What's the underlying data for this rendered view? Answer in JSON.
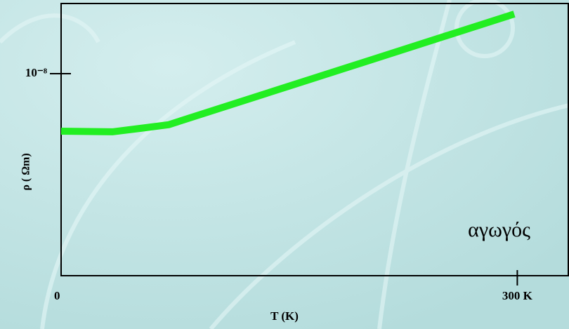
{
  "chart_data": {
    "type": "line",
    "ylabel": "ρ ( Ωm)",
    "xlabel": "T (K)",
    "annotation": "αγωγός",
    "xlim": [
      0,
      334
    ],
    "ylim": [
      0,
      1.347e-08
    ],
    "xticks": [
      0,
      {
        "value": 300,
        "label": "300 K"
      }
    ],
    "yticks": [
      {
        "value": 1e-08,
        "label": "10⁻⁸"
      }
    ],
    "series": [
      {
        "color": "#22ee22",
        "x": [
          0,
          33.7,
          52,
          70.6,
          298
        ],
        "values": [
          7.15e-09,
          7.12e-09,
          7.29e-09,
          7.47e-09,
          1.295e-08
        ]
      }
    ]
  }
}
